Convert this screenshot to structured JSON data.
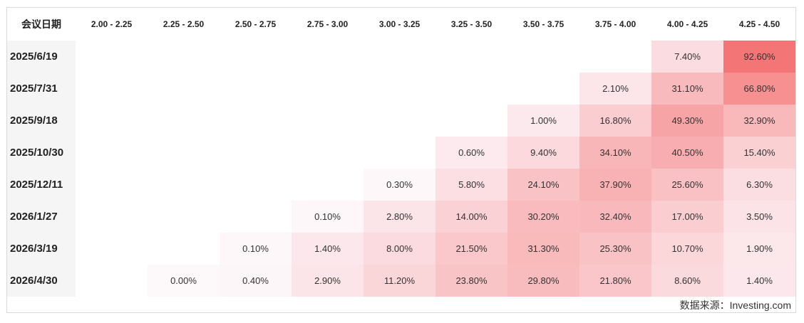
{
  "chart_data": {
    "type": "heatmap",
    "corner_header": "会议日期",
    "columns": [
      "2.00 - 2.25",
      "2.25 - 2.50",
      "2.50 - 2.75",
      "2.75 - 3.00",
      "3.00 - 3.25",
      "3.25 - 3.50",
      "3.50 - 3.75",
      "3.75 - 4.00",
      "4.00 - 4.25",
      "4.25 - 4.50"
    ],
    "rows": [
      {
        "date": "2025/6/19",
        "values": [
          null,
          null,
          null,
          null,
          null,
          null,
          null,
          null,
          7.4,
          92.6
        ]
      },
      {
        "date": "2025/7/31",
        "values": [
          null,
          null,
          null,
          null,
          null,
          null,
          null,
          2.1,
          31.1,
          66.8
        ]
      },
      {
        "date": "2025/9/18",
        "values": [
          null,
          null,
          null,
          null,
          null,
          null,
          1.0,
          16.8,
          49.3,
          32.9
        ]
      },
      {
        "date": "2025/10/30",
        "values": [
          null,
          null,
          null,
          null,
          null,
          0.6,
          9.4,
          34.1,
          40.5,
          15.4
        ]
      },
      {
        "date": "2025/12/11",
        "values": [
          null,
          null,
          null,
          null,
          0.3,
          5.8,
          24.1,
          37.9,
          25.6,
          6.3
        ]
      },
      {
        "date": "2026/1/27",
        "values": [
          null,
          null,
          null,
          0.1,
          2.8,
          14.0,
          30.2,
          32.4,
          17.0,
          3.5
        ]
      },
      {
        "date": "2026/3/19",
        "values": [
          null,
          null,
          0.1,
          1.4,
          8.0,
          21.5,
          31.3,
          25.3,
          10.7,
          1.9
        ]
      },
      {
        "date": "2026/4/30",
        "values": [
          null,
          0.0,
          0.4,
          2.9,
          11.2,
          23.8,
          29.8,
          21.8,
          8.6,
          1.4
        ]
      }
    ],
    "value_suffix": "%",
    "color_scale": {
      "low": "#ffffff",
      "high": "#f46d6d"
    }
  },
  "source_label": "数据来源：Investing.com"
}
